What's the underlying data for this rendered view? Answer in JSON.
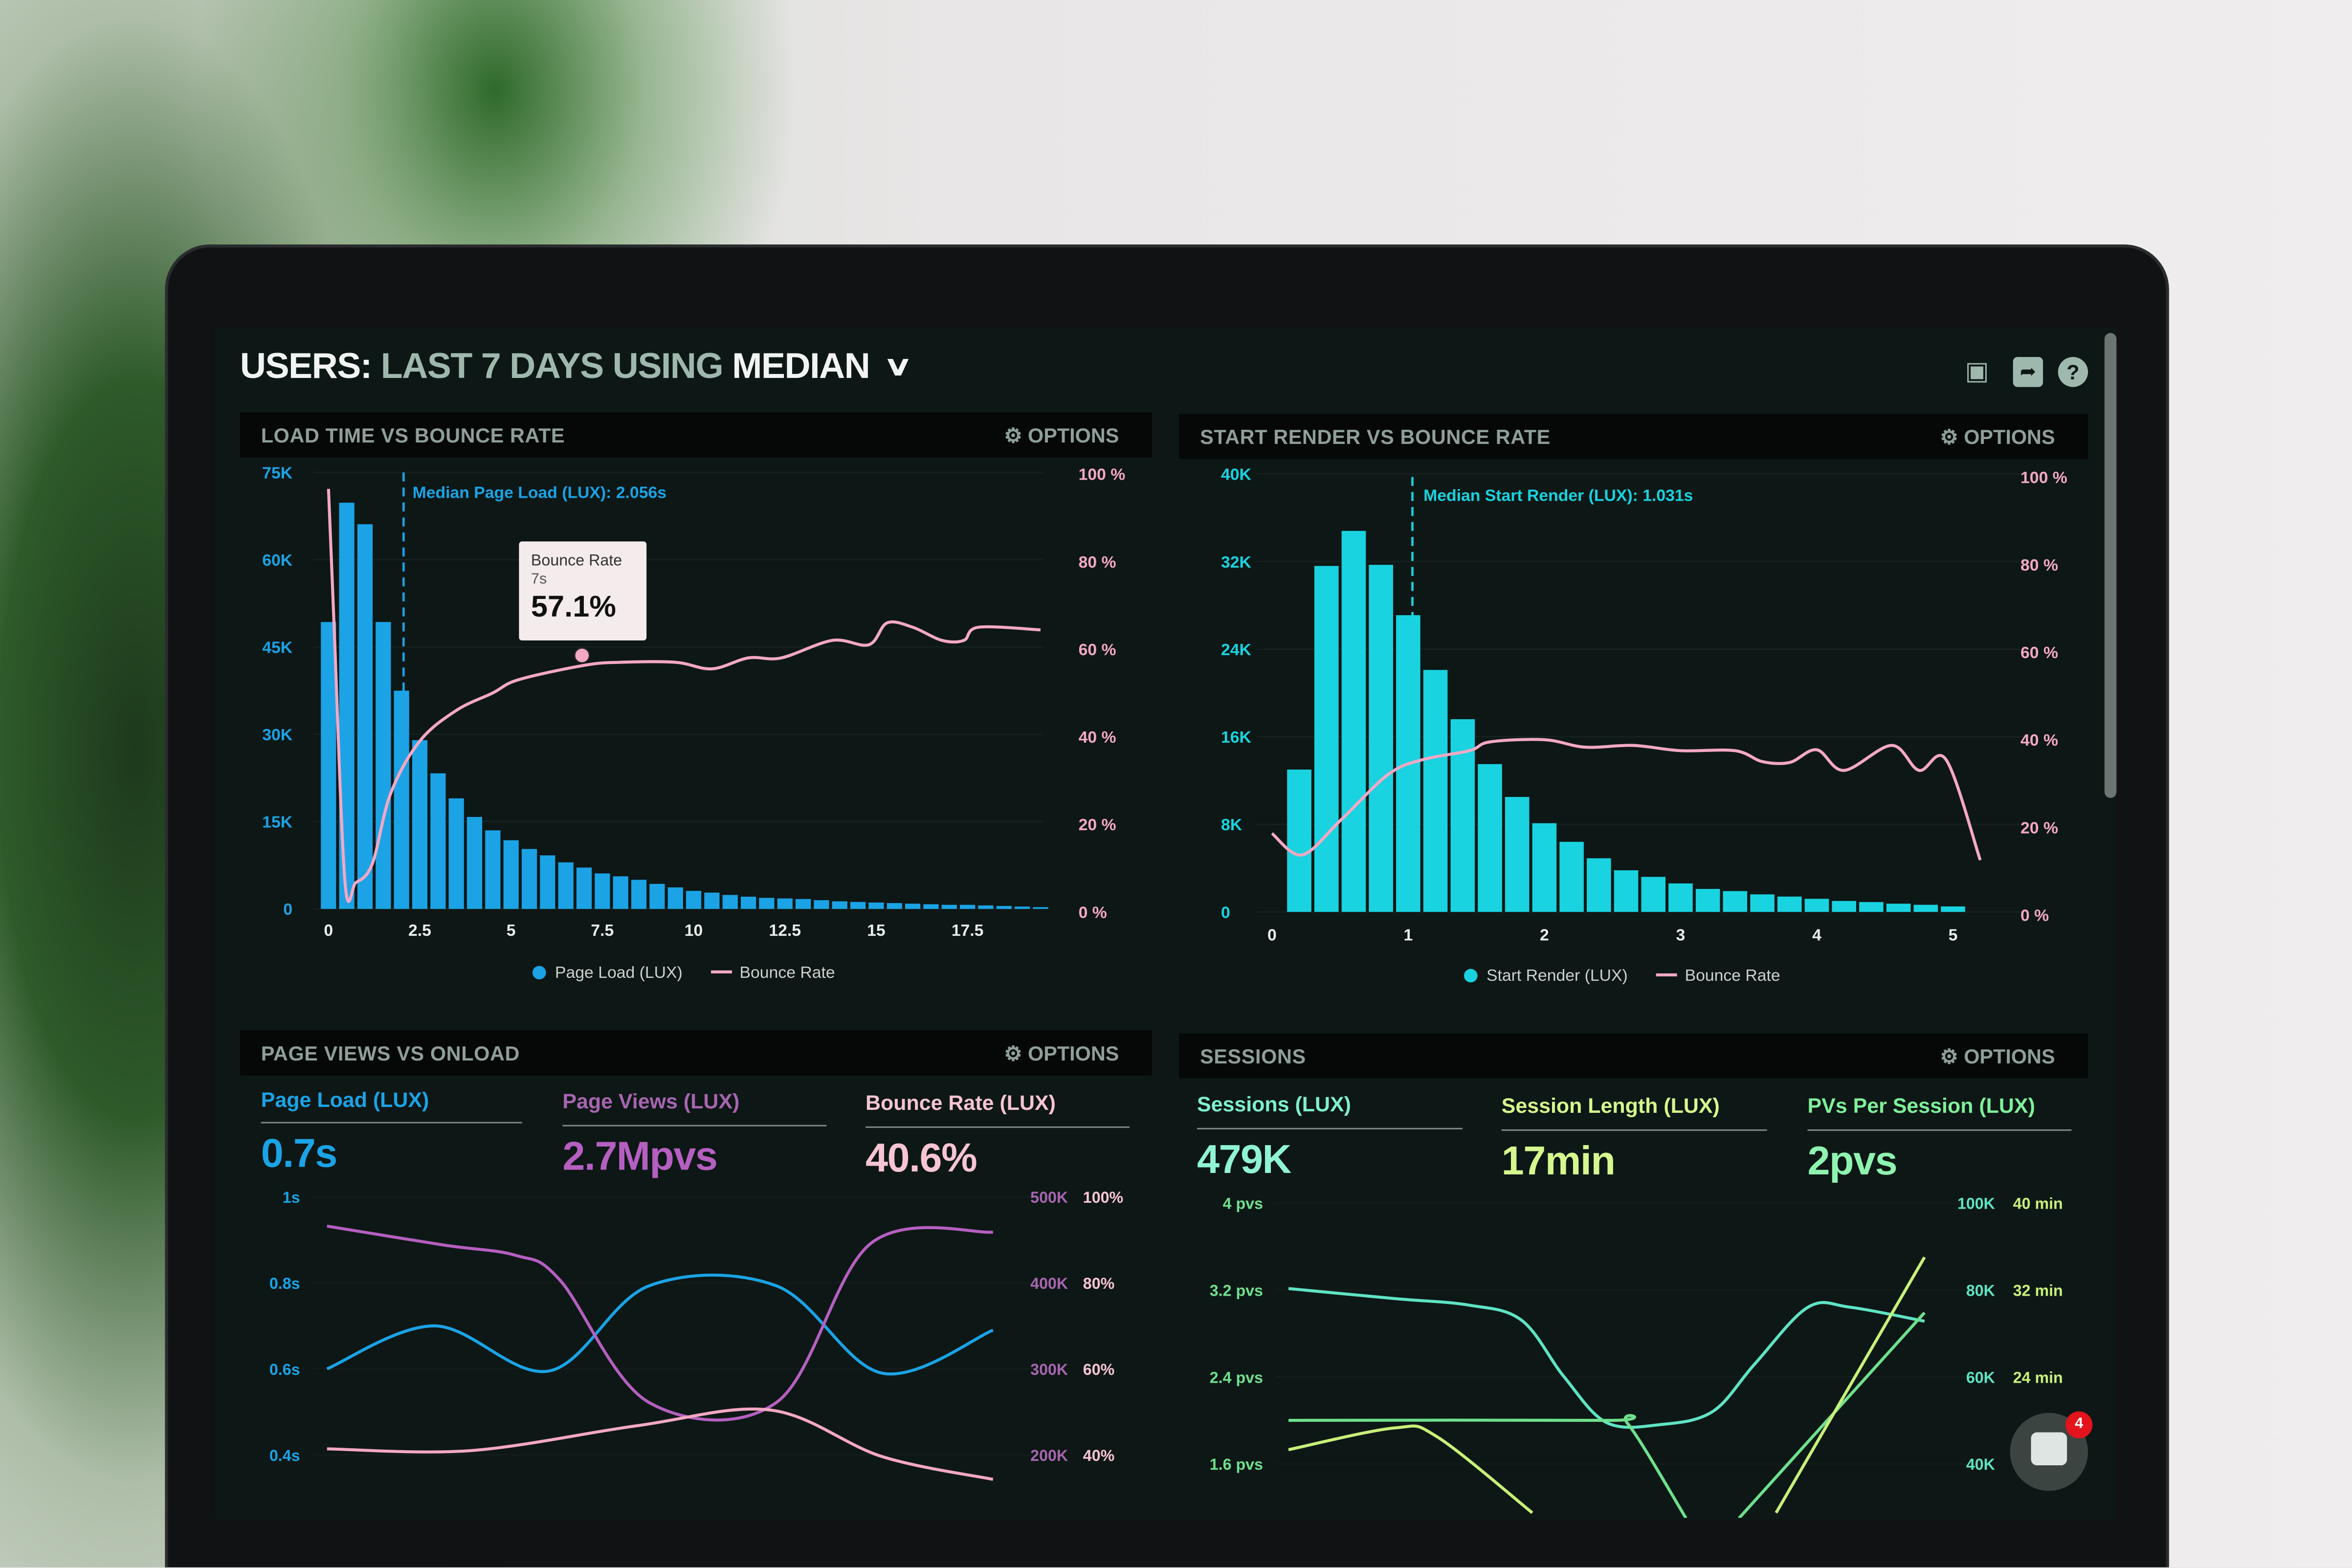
{
  "header": {
    "title_parts": [
      "USERS:",
      "LAST 7 DAYS",
      "USING",
      "MEDIAN"
    ],
    "icons": [
      "monitor-icon",
      "share-icon",
      "help-icon"
    ]
  },
  "options_label": "OPTIONS",
  "colors": {
    "page_load": "#1ba3e6",
    "start_render": "#19d3e0",
    "bounce": "#f4a8c4",
    "page_views": "#b55fc0",
    "sessions": "#5fe3c3",
    "session_length": "#c8f07a",
    "pvs": "#6fe08e"
  },
  "panels": {
    "load_time": {
      "title": "LOAD TIME VS BOUNCE RATE",
      "median_label": "Median Page Load (LUX): 2.056s",
      "tooltip": {
        "title": "Bounce Rate",
        "x": "7s",
        "value": "57.1%"
      },
      "legend": [
        "Page Load (LUX)",
        "Bounce Rate"
      ]
    },
    "start_render": {
      "title": "START RENDER VS BOUNCE RATE",
      "median_label": "Median Start Render (LUX): 1.031s",
      "legend": [
        "Start Render (LUX)",
        "Bounce Rate"
      ]
    },
    "page_views": {
      "title": "PAGE VIEWS VS ONLOAD",
      "kpis": [
        {
          "label": "Page Load (LUX)",
          "value": "0.7s"
        },
        {
          "label": "Page Views (LUX)",
          "value": "2.7Mpvs"
        },
        {
          "label": "Bounce Rate (LUX)",
          "value": "40.6%"
        }
      ]
    },
    "sessions": {
      "title": "SESSIONS",
      "kpis": [
        {
          "label": "Sessions (LUX)",
          "value": "479K"
        },
        {
          "label": "Session Length (LUX)",
          "value": "17min"
        },
        {
          "label": "PVs Per Session (LUX)",
          "value": "2pvs"
        }
      ]
    }
  },
  "chat": {
    "badge": "4"
  },
  "chart_data": [
    {
      "type": "bar",
      "name": "load_time",
      "xlim": [
        0,
        20
      ],
      "x_ticks": [
        "0",
        "2.5",
        "5",
        "7.5",
        "10",
        "12.5",
        "15",
        "17.5"
      ],
      "y_ticks": [
        "0",
        "15K",
        "30K",
        "45K",
        "60K",
        "75K"
      ],
      "ylim": [
        0,
        75000
      ],
      "y2_ticks": [
        "0 %",
        "20 %",
        "40 %",
        "60 %",
        "80 %",
        "100 %"
      ],
      "y2lim": [
        0,
        100
      ],
      "median": 2.056,
      "series": [
        {
          "name": "Page Load (LUX)",
          "type": "bar",
          "bin_width": 0.5,
          "values": [
            49300,
            69800,
            66100,
            49300,
            37500,
            29000,
            23300,
            19000,
            15800,
            13500,
            11800,
            10300,
            9200,
            8000,
            7100,
            6100,
            5600,
            5000,
            4300,
            3700,
            3100,
            2800,
            2400,
            2100,
            1900,
            1800,
            1700,
            1500,
            1300,
            1200,
            1100,
            1000,
            900,
            800,
            700,
            700,
            600,
            500,
            400,
            300
          ]
        },
        {
          "name": "Bounce Rate",
          "type": "line",
          "axis": "right",
          "points": [
            [
              0,
              96.6
            ],
            [
              0.15,
              66
            ],
            [
              0.45,
              7
            ],
            [
              0.75,
              6.7
            ],
            [
              1.2,
              11
            ],
            [
              1.7,
              27
            ],
            [
              2.5,
              39
            ],
            [
              3.5,
              46
            ],
            [
              4.5,
              50
            ],
            [
              5.2,
              53
            ],
            [
              7,
              56.3
            ],
            [
              8,
              57
            ],
            [
              9.5,
              57
            ],
            [
              10.5,
              55.5
            ],
            [
              11.5,
              58
            ],
            [
              12.4,
              58
            ],
            [
              13.8,
              62
            ],
            [
              14.8,
              61
            ],
            [
              15.3,
              66
            ],
            [
              16,
              65
            ],
            [
              16.8,
              62
            ],
            [
              17.4,
              62
            ],
            [
              17.8,
              65
            ],
            [
              19.5,
              64.4
            ]
          ]
        }
      ]
    },
    {
      "type": "bar",
      "name": "start_render",
      "xlim": [
        0,
        5.2
      ],
      "x_ticks": [
        "0",
        "1",
        "2",
        "3",
        "4",
        "5"
      ],
      "y_ticks": [
        "0",
        "8K",
        "16K",
        "24K",
        "32K",
        "40K"
      ],
      "ylim": [
        0,
        40000
      ],
      "y2_ticks": [
        "0 %",
        "20 %",
        "40 %",
        "60 %",
        "80 %",
        "100 %"
      ],
      "y2lim": [
        0,
        100
      ],
      "median": 1.031,
      "series": [
        {
          "name": "Start Render (LUX)",
          "type": "bar",
          "bin_width": 0.2,
          "values": [
            13000,
            31600,
            34800,
            31700,
            27100,
            22100,
            17600,
            13500,
            10500,
            8100,
            6400,
            4900,
            3800,
            3200,
            2600,
            2100,
            1900,
            1600,
            1400,
            1200,
            1000,
            900,
            750,
            650,
            500
          ]
        },
        {
          "name": "Bounce Rate",
          "type": "line",
          "axis": "right",
          "points": [
            [
              0,
              18.6
            ],
            [
              0.22,
              13.7
            ],
            [
              0.5,
              21.5
            ],
            [
              0.85,
              32
            ],
            [
              1.1,
              35.4
            ],
            [
              1.45,
              37.5
            ],
            [
              1.6,
              39.5
            ],
            [
              2.0,
              40
            ],
            [
              2.3,
              38.3
            ],
            [
              2.65,
              38.7
            ],
            [
              3.0,
              37.5
            ],
            [
              3.4,
              37.5
            ],
            [
              3.6,
              35
            ],
            [
              3.8,
              34.8
            ],
            [
              4.0,
              37.7
            ],
            [
              4.2,
              33
            ],
            [
              4.55,
              38.7
            ],
            [
              4.75,
              33
            ],
            [
              4.95,
              35.4
            ],
            [
              5.2,
              12.5
            ]
          ]
        }
      ]
    },
    {
      "type": "line",
      "name": "page_views",
      "xlim": [
        0,
        6
      ],
      "y_ticks": [
        "0.4s",
        "0.6s",
        "0.8s",
        "1s"
      ],
      "ylim": [
        0.4,
        1.0
      ],
      "y2_ticks": [
        "200K",
        "300K",
        "400K",
        "500K"
      ],
      "y2lim": [
        200000,
        500000
      ],
      "y3_ticks": [
        "40%",
        "60%",
        "80%",
        "100%"
      ],
      "y3lim": [
        40,
        100
      ],
      "series": [
        {
          "name": "Page Load (LUX)",
          "axis": "left",
          "points": [
            [
              0,
              0.6
            ],
            [
              0.97,
              0.7
            ],
            [
              2.0,
              0.595
            ],
            [
              2.9,
              0.793
            ],
            [
              4.05,
              0.793
            ],
            [
              5.0,
              0.59
            ],
            [
              6,
              0.69
            ]
          ]
        },
        {
          "name": "Page Views (LUX)",
          "axis": "right",
          "points": [
            [
              0,
              466000
            ],
            [
              1.05,
              444000
            ],
            [
              1.7,
              432000
            ],
            [
              2.1,
              403000
            ],
            [
              2.9,
              261000
            ],
            [
              4.05,
              261000
            ],
            [
              4.9,
              446000
            ],
            [
              6,
              459000
            ]
          ]
        },
        {
          "name": "Bounce Rate (LUX)",
          "axis": "right2",
          "points": [
            [
              0,
              41.4
            ],
            [
              1.3,
              41
            ],
            [
              2.8,
              46.8
            ],
            [
              4.0,
              50.4
            ],
            [
              5.0,
              39.6
            ],
            [
              6,
              34.3
            ]
          ]
        }
      ]
    },
    {
      "type": "line",
      "name": "sessions",
      "xlim": [
        0,
        6
      ],
      "y_ticks": [
        "1.6 pvs",
        "2.4 pvs",
        "3.2 pvs",
        "4 pvs"
      ],
      "ylim": [
        1.6,
        4.0
      ],
      "y2_ticks": [
        "40K",
        "60K",
        "80K",
        "100K"
      ],
      "y2lim": [
        40000,
        100000
      ],
      "y3_ticks": [
        "24 min",
        "32 min",
        "40 min"
      ],
      "y3lim": [
        24,
        40
      ],
      "series": [
        {
          "name": "Sessions (LUX)",
          "axis": "right",
          "points": [
            [
              0,
              80300
            ],
            [
              1.0,
              78000
            ],
            [
              1.7,
              76500
            ],
            [
              2.2,
              73000
            ],
            [
              2.6,
              60000
            ],
            [
              3.0,
              49500
            ],
            [
              3.5,
              49000
            ],
            [
              4.0,
              52000
            ],
            [
              4.4,
              63000
            ],
            [
              4.9,
              76000
            ],
            [
              5.3,
              76000
            ],
            [
              6,
              72800
            ]
          ]
        },
        {
          "name": "PVs Per Session (LUX)",
          "axis": "left",
          "points": [
            [
              0,
              2.0
            ],
            [
              3.0,
              2.0
            ],
            [
              3.2,
              1.97
            ],
            [
              3.75,
              1.1
            ]
          ],
          "points_b": [
            [
              4.25,
              1.1
            ],
            [
              6,
              2.99
            ]
          ]
        },
        {
          "name": "Session Length (LUX)",
          "axis": "right2",
          "points": [
            [
              0,
              17.3
            ],
            [
              1.0,
              19.3
            ],
            [
              1.4,
              18.5
            ],
            [
              2.3,
              11.5
            ]
          ],
          "points_b": [
            [
              4.6,
              11.5
            ],
            [
              6,
              35
            ]
          ]
        }
      ]
    }
  ]
}
